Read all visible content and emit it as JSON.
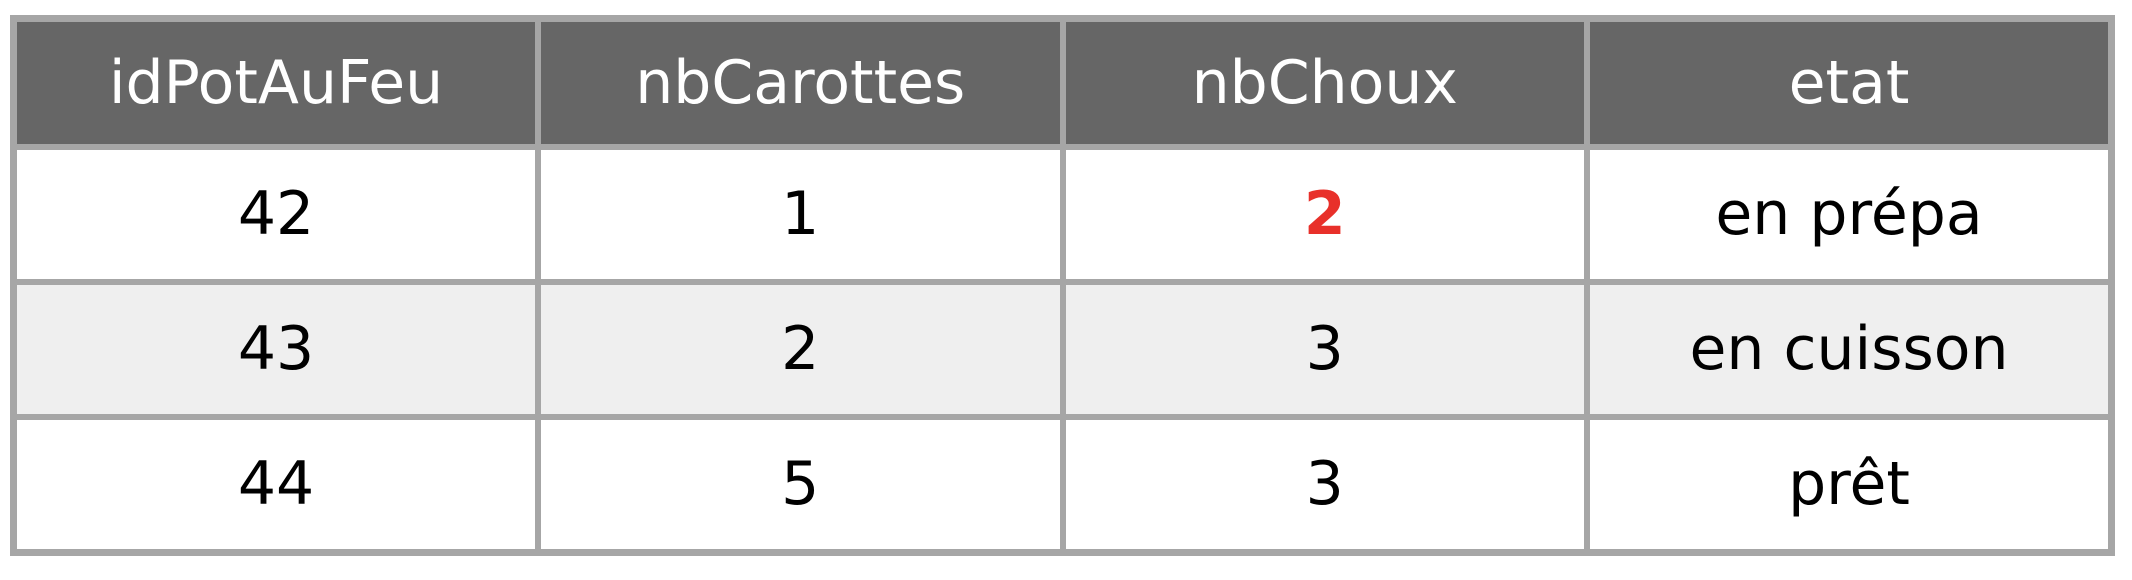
{
  "table": {
    "headers": [
      "idPotAuFeu",
      "nbCarottes",
      "nbChoux",
      "etat"
    ],
    "rows": [
      [
        "42",
        "1",
        "2",
        "en prépa"
      ],
      [
        "43",
        "2",
        "3",
        "en cuisson"
      ],
      [
        "44",
        "5",
        "3",
        "prêt"
      ]
    ],
    "highlighted_cell": {
      "row": 0,
      "column": 2,
      "color": "#e8302a"
    }
  },
  "colors": {
    "header_background": "#666666",
    "header_text": "#ffffff",
    "border": "#a6a6a6",
    "alternate_row_background": "#efefef",
    "highlight_text": "#e8302a"
  }
}
